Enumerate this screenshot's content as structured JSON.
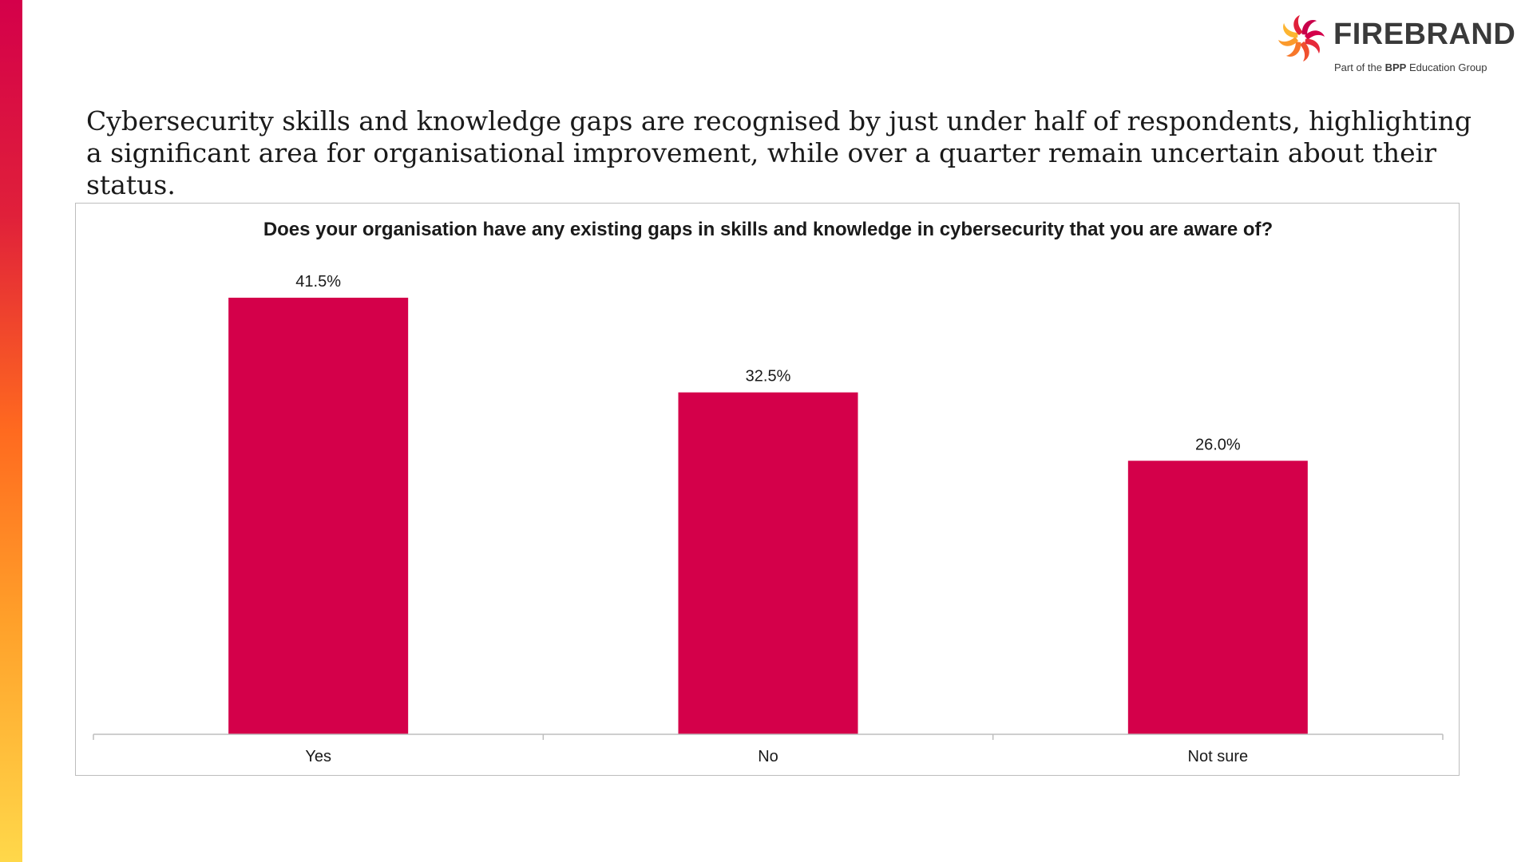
{
  "brand": {
    "name": "FIREBRAND",
    "tagline_prefix": "Part of the ",
    "tagline_bold": "BPP",
    "tagline_suffix": " Education Group"
  },
  "headline": "Cybersecurity skills and knowledge gaps are recognised by just under half of respondents, highlighting a significant area for organisational improvement, while over a quarter remain uncertain about their status.",
  "colors": {
    "bar": "#d4004a",
    "axis": "#bdbdbd",
    "text": "#1a1a1a"
  },
  "chart_data": {
    "type": "bar",
    "title": "Does your organisation have any existing gaps in skills and knowledge in cybersecurity that you are aware of?",
    "categories": [
      "Yes",
      "No",
      "Not sure"
    ],
    "values": [
      41.5,
      32.5,
      26.0
    ],
    "data_labels": [
      "41.5%",
      "32.5%",
      "26.0%"
    ],
    "ylim": [
      0,
      41.5
    ],
    "unit": "%",
    "grid": false,
    "legend": "none"
  }
}
